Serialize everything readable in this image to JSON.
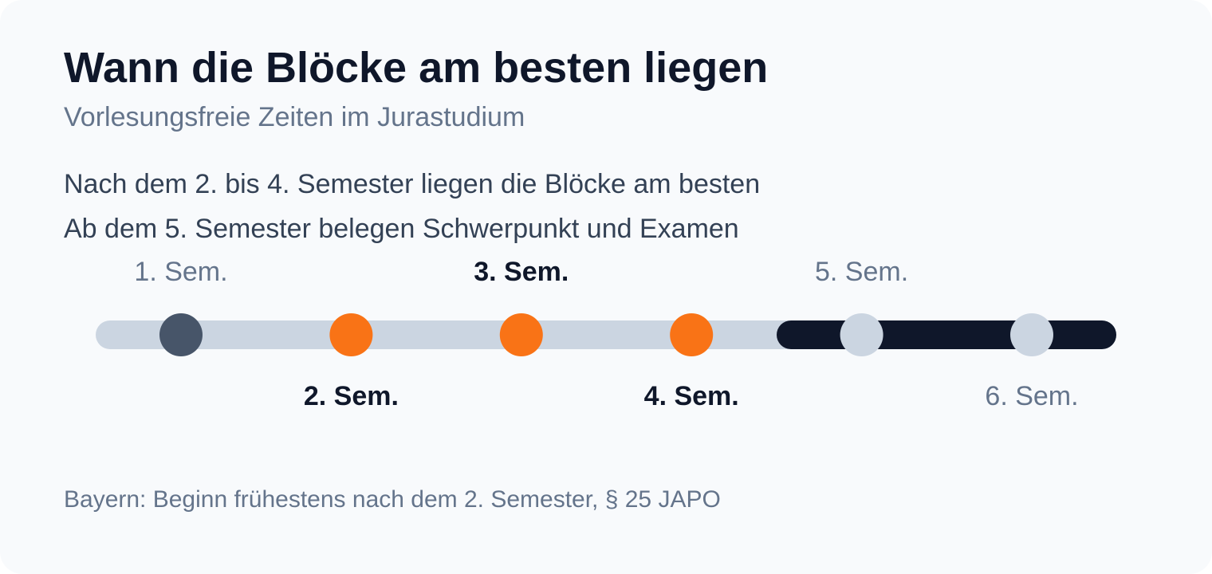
{
  "title": "Wann die Blöcke am besten liegen",
  "subtitle": "Vorlesungsfreie Zeiten im Jurastudium",
  "lines": [
    "Nach dem 2. bis 4. Semester liegen die Blöcke am besten",
    "Ab dem 5. Semester belegen Schwerpunkt und Examen"
  ],
  "timeline": {
    "semesters": [
      {
        "label": "1. Sem.",
        "status": "past"
      },
      {
        "label": "2. Sem.",
        "status": "ideal"
      },
      {
        "label": "3. Sem.",
        "status": "ideal"
      },
      {
        "label": "4. Sem.",
        "status": "ideal"
      },
      {
        "label": "5. Sem.",
        "status": "late"
      },
      {
        "label": "6. Sem.",
        "status": "late"
      }
    ],
    "colors": {
      "track": "#cbd5e1",
      "late_track": "#0f172a",
      "past": "#475569",
      "ideal": "#f97316",
      "late": "#cbd5e1",
      "label_muted": "#64748b",
      "label_strong": "#0f172a"
    }
  },
  "footnote": "Bayern: Beginn frühestens nach dem 2. Semester, § 25 JAPO"
}
